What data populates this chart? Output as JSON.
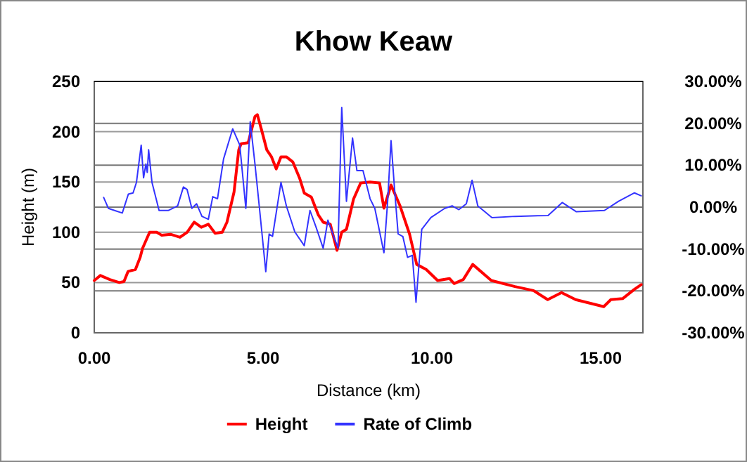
{
  "chart_data": {
    "type": "line",
    "title": "Khow Keaw",
    "xlabel": "Distance (km)",
    "ylabel": "Height (m)",
    "xlim": [
      0,
      16.25
    ],
    "xticks": [
      {
        "value": 0,
        "label": "0.00"
      },
      {
        "value": 5,
        "label": "5.00"
      },
      {
        "value": 10,
        "label": "10.00"
      },
      {
        "value": 15,
        "label": "15.00"
      }
    ],
    "ylim": [
      0,
      250
    ],
    "yticks": [
      0,
      50,
      100,
      150,
      200,
      250
    ],
    "y2lim": [
      -30,
      30
    ],
    "y2ticks": [
      {
        "value": -30,
        "label": "-30.00%"
      },
      {
        "value": -20,
        "label": "-20.00%"
      },
      {
        "value": -10,
        "label": "-10.00%"
      },
      {
        "value": 0,
        "label": "0.00%"
      },
      {
        "value": 10,
        "label": "10.00%"
      },
      {
        "value": 20,
        "label": "20.00%"
      },
      {
        "value": 30,
        "label": "30.00%"
      }
    ],
    "grid": "y",
    "legend": "bottom",
    "marker": "none",
    "line_style": "solid",
    "series": [
      {
        "name": "Height",
        "color": "#ff0000",
        "x": [
          0,
          0.18,
          0.46,
          0.74,
          0.88,
          1.0,
          1.22,
          1.36,
          1.43,
          1.64,
          1.85,
          2.0,
          2.26,
          2.54,
          2.75,
          2.96,
          3.17,
          3.38,
          3.58,
          3.79,
          3.93,
          4.14,
          4.28,
          4.35,
          4.56,
          4.76,
          4.83,
          4.97,
          5.11,
          5.25,
          5.39,
          5.53,
          5.69,
          5.88,
          6.08,
          6.22,
          6.43,
          6.64,
          6.78,
          6.99,
          7.19,
          7.33,
          7.47,
          7.68,
          7.89,
          8.17,
          8.45,
          8.58,
          8.79,
          9.06,
          9.34,
          9.55,
          9.83,
          10.17,
          10.52,
          10.66,
          10.93,
          11.21,
          11.76,
          12.46,
          13.01,
          13.43,
          13.84,
          14.26,
          15.09,
          15.3,
          15.65,
          15.99,
          16.2
        ],
        "values": [
          52,
          57,
          53,
          50,
          51,
          61,
          63,
          75,
          84,
          100,
          100,
          97,
          98,
          95,
          100,
          110,
          105,
          108,
          99,
          100,
          110,
          140,
          182,
          188,
          189,
          215,
          217,
          200,
          182,
          175,
          163,
          175,
          175,
          170,
          154,
          139,
          135,
          117,
          110,
          108,
          82,
          100,
          103,
          133,
          149,
          150,
          149,
          124,
          147,
          126,
          98,
          68,
          63,
          52,
          54,
          49,
          53,
          68,
          52,
          46,
          42,
          33,
          40,
          33,
          26,
          33,
          34,
          43,
          48
        ]
      },
      {
        "name": "Rate of Climb",
        "color": "#3333ff",
        "axis": "y2",
        "x": [
          0.28,
          0.42,
          0.6,
          0.83,
          1.01,
          1.15,
          1.25,
          1.39,
          1.46,
          1.53,
          1.57,
          1.61,
          1.71,
          1.92,
          2.19,
          2.47,
          2.64,
          2.75,
          2.89,
          3.03,
          3.19,
          3.38,
          3.51,
          3.65,
          3.83,
          4.1,
          4.31,
          4.49,
          4.62,
          4.76,
          4.9,
          5.08,
          5.18,
          5.28,
          5.53,
          5.69,
          5.94,
          6.22,
          6.39,
          6.57,
          6.78,
          6.92,
          7.13,
          7.22,
          7.33,
          7.47,
          7.65,
          7.78,
          7.96,
          8.17,
          8.31,
          8.58,
          8.69,
          8.79,
          8.89,
          9.0,
          9.14,
          9.28,
          9.42,
          9.53,
          9.7,
          9.97,
          10.38,
          10.6,
          10.8,
          11.02,
          11.19,
          11.36,
          11.78,
          12.47,
          13.44,
          13.86,
          14.28,
          15.11,
          15.53,
          16.0,
          16.2
        ],
        "values": [
          2.3,
          -0.3,
          -0.8,
          -1.4,
          3.1,
          3.4,
          5.9,
          14.8,
          7.0,
          10.3,
          8.3,
          13.7,
          5.9,
          -0.8,
          -0.8,
          0.3,
          4.8,
          4.2,
          -0.3,
          0.8,
          -2.2,
          -2.9,
          2.5,
          2.0,
          11.5,
          18.7,
          14.8,
          -0.3,
          20.4,
          10.3,
          -0.8,
          -15.4,
          -6.4,
          -7.0,
          5.9,
          0.3,
          -5.9,
          -9.2,
          -0.8,
          -4.8,
          -9.8,
          -3.1,
          -7.8,
          -9.8,
          23.8,
          1.4,
          16.5,
          8.7,
          8.7,
          2.0,
          -0.3,
          -10.9,
          1.4,
          15.9,
          4.8,
          -6.4,
          -7.0,
          -12.0,
          -11.5,
          -22.7,
          -5.3,
          -2.5,
          -0.3,
          0.3,
          -0.6,
          0.8,
          6.4,
          0.3,
          -2.5,
          -2.2,
          -2.0,
          1.1,
          -1.1,
          -0.8,
          1.4,
          3.4,
          2.7
        ]
      }
    ]
  }
}
